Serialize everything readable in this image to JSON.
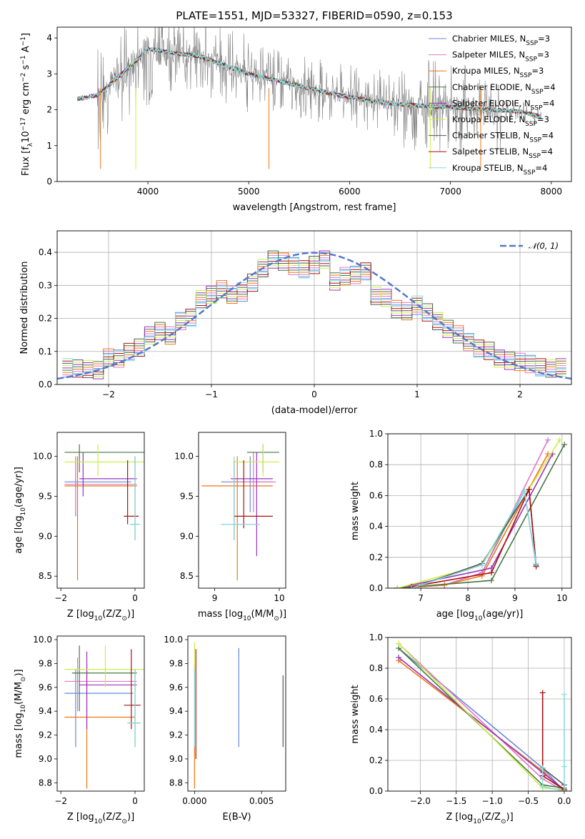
{
  "title": "PLATE=1551, MJD=53327, FIBERID=0590, z=0.153",
  "colors": {
    "Chabrier MILES": "#6688dd",
    "Salpeter MILES": "#e377c2",
    "Kroupa MILES": "#ee7711",
    "Chabrier ELODIE": "#447744",
    "Salpeter ELODIE": "#9933bb",
    "Kroupa ELODIE": "#ccee44",
    "Chabrier STELIB": "#555555",
    "Salpeter STELIB": "#aa1111",
    "Kroupa STELIB": "#88dddd"
  },
  "chart_data": [
    {
      "id": "spectrum",
      "type": "line",
      "xlabel": "wavelength [Angstrom, rest frame]",
      "ylabel": "Flux [f",
      "ylabel_sub": "λ",
      "ylabel_rest": "10",
      "ylabel_sup1": "−17",
      "ylabel_mid": " erg cm",
      "ylabel_sup2": "−2",
      "ylabel_mid2": " s",
      "ylabel_sup3": "−1",
      "ylabel_end": " A",
      "ylabel_sup4": "−1",
      "ylabel_close": "]",
      "xlim": [
        3100,
        8200
      ],
      "ylim": [
        0,
        4.3
      ],
      "xticks": [
        "4000",
        "5000",
        "6000",
        "7000",
        "8000"
      ],
      "yticks": [
        "0",
        "1",
        "2",
        "3",
        "4"
      ],
      "data_series": {
        "name": "data",
        "color": "#808080",
        "x": [
          3300,
          3500,
          3700,
          3900,
          4000,
          4200,
          4500,
          4800,
          5000,
          5300,
          5600,
          5900,
          6200,
          6500,
          6800,
          7100,
          7400,
          7700,
          7900
        ],
        "y": [
          2.3,
          2.4,
          2.9,
          3.4,
          3.7,
          3.6,
          3.5,
          3.2,
          3.0,
          2.8,
          2.6,
          2.4,
          2.25,
          2.15,
          2.1,
          2.05,
          2.0,
          1.95,
          1.8
        ]
      },
      "legend": [
        {
          "name": "Chabrier MILES",
          "nssp": "3"
        },
        {
          "name": "Salpeter MILES",
          "nssp": "3"
        },
        {
          "name": "Kroupa MILES",
          "nssp": "3"
        },
        {
          "name": "Chabrier ELODIE",
          "nssp": "4"
        },
        {
          "name": "Salpeter ELODIE",
          "nssp": "4"
        },
        {
          "name": "Kroupa ELODIE",
          "nssp": "3"
        },
        {
          "name": "Chabrier STELIB",
          "nssp": "4"
        },
        {
          "name": "Salpeter STELIB",
          "nssp": "4"
        },
        {
          "name": "Kroupa STELIB",
          "nssp": "4"
        }
      ],
      "legend_prefix": "N",
      "legend_sub": "SSP",
      "legend_placement": "top-right"
    },
    {
      "id": "residuals",
      "type": "histogram",
      "xlabel": "(data-model)/error",
      "ylabel": "Normed distribution",
      "xlim": [
        -2.5,
        2.5
      ],
      "ylim": [
        0,
        0.465
      ],
      "xticks": [
        "−2",
        "−1",
        "0",
        "1",
        "2"
      ],
      "yticks": [
        "0.0",
        "0.1",
        "0.2",
        "0.3",
        "0.4"
      ],
      "grid": true,
      "legend_label": "𝒩(0, 1)",
      "bins_center": [
        -2.4,
        -2.3,
        -2.2,
        -2.1,
        -2.0,
        -1.9,
        -1.8,
        -1.7,
        -1.6,
        -1.5,
        -1.4,
        -1.3,
        -1.2,
        -1.1,
        -1.0,
        -0.9,
        -0.8,
        -0.7,
        -0.6,
        -0.5,
        -0.4,
        -0.3,
        -0.2,
        -0.1,
        0.0,
        0.1,
        0.2,
        0.3,
        0.4,
        0.5,
        0.6,
        0.7,
        0.8,
        0.9,
        1.0,
        1.1,
        1.2,
        1.3,
        1.4,
        1.5,
        1.6,
        1.7,
        1.8,
        1.9,
        2.0,
        2.1,
        2.2,
        2.3,
        2.4
      ],
      "density": [
        0.05,
        0.05,
        0.045,
        0.045,
        0.08,
        0.08,
        0.1,
        0.11,
        0.15,
        0.16,
        0.15,
        0.19,
        0.2,
        0.26,
        0.27,
        0.29,
        0.27,
        0.28,
        0.31,
        0.35,
        0.38,
        0.37,
        0.36,
        0.35,
        0.36,
        0.38,
        0.31,
        0.33,
        0.33,
        0.34,
        0.27,
        0.26,
        0.23,
        0.22,
        0.24,
        0.22,
        0.19,
        0.17,
        0.15,
        0.13,
        0.11,
        0.1,
        0.08,
        0.07,
        0.07,
        0.06,
        0.05,
        0.05,
        0.05
      ]
    },
    {
      "id": "age-vs-Z",
      "type": "errorbar",
      "xlabel": "Z [log",
      "xlabel_sub": "10",
      "xlabel_rest": "(Z/Z",
      "xlabel_sub2": "⊙",
      "xlabel_end": ")]",
      "ylabel": "age  [log",
      "ylabel_sub": "10",
      "ylabel_rest": "(age/yr)]",
      "xlim": [
        -2.1,
        0.25
      ],
      "ylim": [
        8.35,
        10.3
      ],
      "xticks": [
        "−2",
        "0"
      ],
      "yticks": [
        "8.5",
        "9.0",
        "9.5",
        "10.0"
      ],
      "points": [
        {
          "s": "Chabrier MILES",
          "x": -1.6,
          "y": 9.68,
          "xe": [
            -1.9,
            -0.1
          ],
          "ye": [
            9.25,
            10.0
          ]
        },
        {
          "s": "Salpeter MILES",
          "x": -1.6,
          "y": 9.65,
          "xe": [
            -1.9,
            0.05
          ],
          "ye": [
            9.3,
            10.0
          ]
        },
        {
          "s": "Kroupa MILES",
          "x": -1.55,
          "y": 9.63,
          "xe": [
            -1.9,
            0.05
          ],
          "ye": [
            8.45,
            10.0
          ]
        },
        {
          "s": "Chabrier ELODIE",
          "x": -1.5,
          "y": 10.05,
          "xe": [
            -1.9,
            0.35
          ],
          "ye": [
            9.8,
            10.15
          ]
        },
        {
          "s": "Salpeter ELODIE",
          "x": -1.4,
          "y": 9.72,
          "xe": [
            -1.5,
            0.05
          ],
          "ye": [
            9.5,
            10.05
          ]
        },
        {
          "s": "Kroupa ELODIE",
          "x": -1.0,
          "y": 9.93,
          "xe": [
            -1.9,
            0.35
          ],
          "ye": [
            9.75,
            10.15
          ]
        },
        {
          "s": "Chabrier STELIB",
          "x": 0.0,
          "y": 9.15,
          "xe": [
            -0.1,
            0.1
          ],
          "ye": [
            8.95,
            10.0
          ]
        },
        {
          "s": "Salpeter STELIB",
          "x": -0.2,
          "y": 9.25,
          "xe": [
            -0.3,
            0.1
          ],
          "ye": [
            9.15,
            9.95
          ]
        },
        {
          "s": "Kroupa STELIB",
          "x": 0.0,
          "y": 9.15,
          "xe": [
            -0.15,
            0.15
          ],
          "ye": [
            8.95,
            10.0
          ]
        }
      ]
    },
    {
      "id": "age-vs-mass",
      "type": "errorbar",
      "xlabel": "mass [log",
      "xlabel_sub": "10",
      "xlabel_rest": "(M/M",
      "xlabel_sub2": "⊙",
      "xlabel_end": ")]",
      "xlim": [
        8.75,
        10.1
      ],
      "ylim": [
        8.35,
        10.3
      ],
      "xticks": [
        "9",
        "10"
      ],
      "yticks": [
        "8.5",
        "9.0",
        "9.5",
        "10.0"
      ],
      "points": [
        {
          "s": "Chabrier MILES",
          "x": 9.55,
          "y": 9.68,
          "xe": [
            9.1,
            9.9
          ],
          "ye": [
            9.3,
            10.0
          ]
        },
        {
          "s": "Salpeter MILES",
          "x": 9.6,
          "y": 9.68,
          "xe": [
            9.25,
            9.95
          ],
          "ye": [
            9.3,
            10.05
          ]
        },
        {
          "s": "Kroupa MILES",
          "x": 9.35,
          "y": 9.63,
          "xe": [
            8.8,
            9.9
          ],
          "ye": [
            8.45,
            10.0
          ]
        },
        {
          "s": "Chabrier ELODIE",
          "x": 9.75,
          "y": 10.05,
          "xe": [
            9.5,
            10.0
          ],
          "ye": [
            9.8,
            10.15
          ]
        },
        {
          "s": "Salpeter ELODIE",
          "x": 9.65,
          "y": 9.72,
          "xe": [
            9.25,
            9.9
          ],
          "ye": [
            8.75,
            10.05
          ]
        },
        {
          "s": "Kroupa ELODIE",
          "x": 9.75,
          "y": 9.93,
          "xe": [
            9.3,
            10.0
          ],
          "ye": [
            9.75,
            10.15
          ]
        },
        {
          "s": "Chabrier STELIB",
          "x": 9.3,
          "y": 9.15,
          "xe": [
            9.1,
            9.7
          ],
          "ye": [
            8.95,
            9.95
          ]
        },
        {
          "s": "Salpeter STELIB",
          "x": 9.45,
          "y": 9.25,
          "xe": [
            9.3,
            9.9
          ],
          "ye": [
            9.1,
            9.95
          ]
        },
        {
          "s": "Kroupa STELIB",
          "x": 9.3,
          "y": 9.15,
          "xe": [
            9.1,
            9.7
          ],
          "ye": [
            8.95,
            10.0
          ]
        }
      ]
    },
    {
      "id": "massweight-vs-age",
      "type": "line",
      "xlabel": "age  [log",
      "xlabel_sub": "10",
      "xlabel_rest": "(age/yr)]",
      "ylabel": "mass weight",
      "xlim": [
        6.3,
        10.2
      ],
      "ylim": [
        0,
        1.0
      ],
      "xticks": [
        "7",
        "8",
        "9",
        "10"
      ],
      "yticks": [
        "0.0",
        "0.2",
        "0.4",
        "0.6",
        "0.8",
        "1.0"
      ],
      "grid": true,
      "series": [
        {
          "s": "Chabrier MILES",
          "x": [
            6.5,
            7.5,
            8.3,
            9.2,
            9.45
          ],
          "y": [
            0.0,
            0.02,
            0.1,
            0.63,
            0.15
          ]
        },
        {
          "s": "Salpeter MILES",
          "x": [
            6.5,
            7.5,
            8.3,
            9.7
          ],
          "y": [
            0.0,
            0.02,
            0.1,
            0.96
          ]
        },
        {
          "s": "Kroupa MILES",
          "x": [
            6.5,
            7.5,
            8.3,
            9.7
          ],
          "y": [
            0.0,
            0.02,
            0.08,
            0.87
          ]
        },
        {
          "s": "Chabrier ELODIE",
          "x": [
            6.5,
            8.5,
            10.05
          ],
          "y": [
            0.0,
            0.05,
            0.93
          ]
        },
        {
          "s": "Salpeter ELODIE",
          "x": [
            6.5,
            8.5,
            9.8
          ],
          "y": [
            0.0,
            0.13,
            0.87
          ]
        },
        {
          "s": "Kroupa ELODIE",
          "x": [
            6.5,
            8.3,
            9.95
          ],
          "y": [
            0.0,
            0.15,
            0.96
          ]
        },
        {
          "s": "Chabrier STELIB",
          "x": [
            6.8,
            8.3,
            9.3,
            9.45
          ],
          "y": [
            0.0,
            0.16,
            0.64,
            0.15
          ]
        },
        {
          "s": "Salpeter STELIB",
          "x": [
            6.8,
            8.5,
            9.3,
            9.45
          ],
          "y": [
            0.01,
            0.1,
            0.64,
            0.14
          ]
        },
        {
          "s": "Kroupa STELIB",
          "x": [
            6.8,
            8.3,
            9.2,
            9.45
          ],
          "y": [
            0.0,
            0.15,
            0.63,
            0.16
          ]
        }
      ]
    },
    {
      "id": "mass-vs-Z",
      "type": "errorbar",
      "ylabel": "mass [log",
      "ylabel_sub": "10",
      "ylabel_rest": "(M/M",
      "ylabel_sub2": "⊙",
      "ylabel_end": ")]",
      "xlim": [
        -2.1,
        0.25
      ],
      "ylim": [
        8.73,
        10.03
      ],
      "xticks": [
        "−2",
        "0"
      ],
      "yticks": [
        "8.8",
        "9.0",
        "9.2",
        "9.4",
        "9.6",
        "9.8",
        "10.0"
      ],
      "points": [
        {
          "s": "Chabrier MILES",
          "x": -1.6,
          "y": 9.55,
          "xe": [
            -1.9,
            -0.05
          ],
          "ye": [
            9.1,
            9.75
          ]
        },
        {
          "s": "Salpeter MILES",
          "x": -1.55,
          "y": 9.65,
          "xe": [
            -1.9,
            0.05
          ],
          "ye": [
            9.4,
            9.85
          ]
        },
        {
          "s": "Kroupa MILES",
          "x": -1.3,
          "y": 9.35,
          "xe": [
            -1.9,
            0.0
          ],
          "ye": [
            8.75,
            9.8
          ]
        },
        {
          "s": "Chabrier ELODIE",
          "x": -1.5,
          "y": 9.72,
          "xe": [
            -1.7,
            0.05
          ],
          "ye": [
            9.4,
            9.95
          ]
        },
        {
          "s": "Salpeter ELODIE",
          "x": -1.3,
          "y": 9.62,
          "xe": [
            -1.5,
            0.05
          ],
          "ye": [
            9.25,
            9.9
          ]
        },
        {
          "s": "Kroupa ELODIE",
          "x": -0.8,
          "y": 9.75,
          "xe": [
            -1.9,
            0.3
          ],
          "ye": [
            9.6,
            9.95
          ]
        },
        {
          "s": "Chabrier STELIB",
          "x": 0.0,
          "y": 9.3,
          "xe": [
            -0.2,
            0.15
          ],
          "ye": [
            9.1,
            9.75
          ]
        },
        {
          "s": "Salpeter STELIB",
          "x": -0.1,
          "y": 9.45,
          "xe": [
            -0.3,
            0.15
          ],
          "ye": [
            9.25,
            9.92
          ]
        },
        {
          "s": "Kroupa STELIB",
          "x": 0.0,
          "y": 9.3,
          "xe": [
            -0.2,
            0.15
          ],
          "ye": [
            9.1,
            9.75
          ]
        }
      ]
    },
    {
      "id": "mass-vs-EBV",
      "type": "errorbar",
      "xlabel": "E(B-V)",
      "xlim": [
        -0.0005,
        0.0068
      ],
      "ylim": [
        8.73,
        10.03
      ],
      "xticks": [
        "0.000",
        "0.005"
      ],
      "yticks": [
        "8.8",
        "9.0",
        "9.2",
        "9.4",
        "9.6",
        "9.8",
        "10.0"
      ],
      "points": [
        {
          "s": "Chabrier MILES",
          "x": 0.0033,
          "y": 9.55,
          "xe": [
            0.0033,
            0.0033
          ],
          "ye": [
            9.1,
            9.93
          ]
        },
        {
          "s": "Kroupa MILES",
          "x": 0.0,
          "y": 9.35,
          "xe": [
            0.0,
            0.0
          ],
          "ye": [
            8.75,
            9.8
          ]
        },
        {
          "s": "Salpeter STELIB",
          "x": 0.0001,
          "y": 9.45,
          "xe": [
            0.0001,
            0.0001
          ],
          "ye": [
            9.0,
            9.92
          ]
        },
        {
          "s": "Kroupa ELODIE",
          "x": 0.0,
          "y": 9.75,
          "xe": [
            0.0,
            0.0
          ],
          "ye": [
            9.6,
            9.98
          ]
        },
        {
          "s": "Chabrier STELIB",
          "x": 0.0066,
          "y": 9.3,
          "xe": [
            0.0066,
            0.0066
          ],
          "ye": [
            9.1,
            9.7
          ]
        },
        {
          "s": "Kroupa STELIB",
          "x": 0.0,
          "y": 9.3,
          "xe": [
            0.0,
            0.0
          ],
          "ye": [
            9.1,
            9.75
          ]
        }
      ]
    },
    {
      "id": "massweight-vs-Z",
      "type": "line",
      "xlabel": "Z [log",
      "xlabel_sub": "10",
      "xlabel_rest": "(Z/Z",
      "xlabel_sub2": "⊙",
      "xlabel_end": ")]",
      "ylabel": "mass weight",
      "xlim": [
        -2.45,
        0.1
      ],
      "ylim": [
        0,
        1.0
      ],
      "xticks": [
        "−2.0",
        "−1.5",
        "−1.0",
        "−0.5",
        "0.0"
      ],
      "yticks": [
        "0.0",
        "0.2",
        "0.4",
        "0.6",
        "0.8",
        "1.0"
      ],
      "grid": true,
      "series": [
        {
          "s": "Chabrier MILES",
          "x": [
            -2.3,
            -0.3,
            0.0
          ],
          "y": [
            0.93,
            0.15,
            0.0
          ]
        },
        {
          "s": "Salpeter MILES",
          "x": [
            -2.3,
            -0.3,
            0.0
          ],
          "y": [
            0.96,
            0.08,
            0.0
          ]
        },
        {
          "s": "Kroupa MILES",
          "x": [
            -2.3,
            -0.3,
            0.0
          ],
          "y": [
            0.85,
            0.13,
            0.0
          ]
        },
        {
          "s": "Chabrier ELODIE",
          "x": [
            -2.3,
            -0.3,
            0.0
          ],
          "y": [
            0.93,
            0.04,
            0.02
          ]
        },
        {
          "s": "Salpeter ELODIE",
          "x": [
            -2.3,
            -0.3,
            0.0
          ],
          "y": [
            0.87,
            0.12,
            0.01
          ]
        },
        {
          "s": "Kroupa ELODIE",
          "x": [
            -2.3,
            -0.3,
            0.0
          ],
          "y": [
            0.96,
            0.02,
            0.01
          ]
        },
        {
          "s": "Chabrier STELIB",
          "x": [
            -0.3,
            -0.3,
            0.0,
            0.0
          ],
          "y": [
            0.15,
            0.15,
            0.04,
            0.0
          ]
        },
        {
          "s": "Salpeter STELIB",
          "x": [
            -0.3,
            -0.3,
            0.0
          ],
          "y": [
            0.64,
            0.1,
            0.01
          ]
        },
        {
          "s": "Kroupa STELIB",
          "x": [
            -0.3,
            -0.3,
            0.0,
            0.0,
            0.0
          ],
          "y": [
            0.15,
            0.03,
            0.0,
            0.63,
            0.16
          ]
        }
      ]
    }
  ]
}
